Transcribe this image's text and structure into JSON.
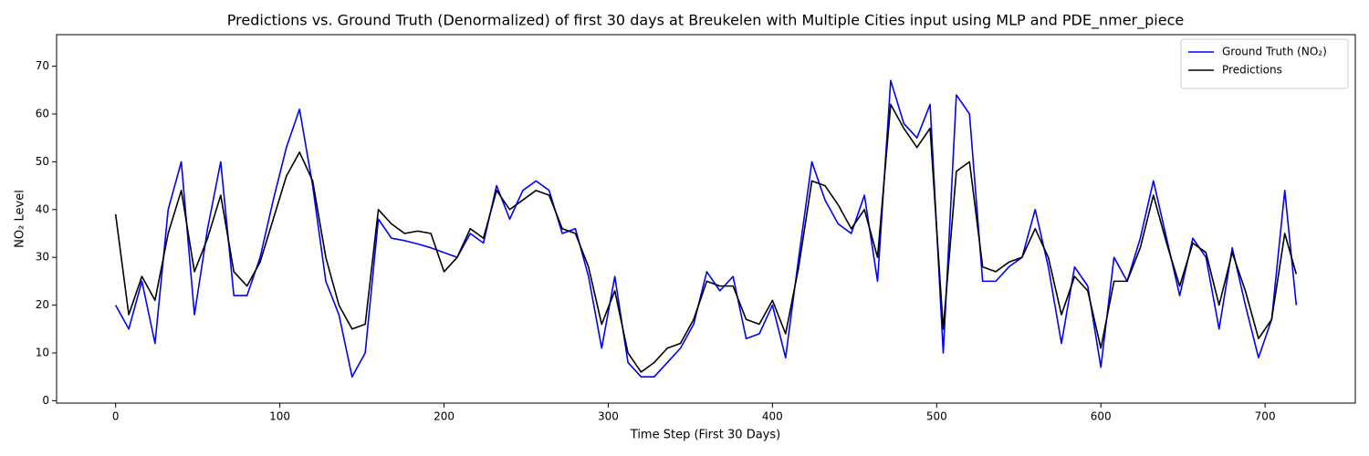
{
  "chart_data": {
    "type": "line",
    "title": "Predictions vs. Ground Truth (Denormalized) of first 30 days at Breukelen with Multiple Cities input using MLP and PDE_nmer_piece",
    "x_label": "Time Step (First 30 Days)",
    "y_label": "NO₂ Level",
    "x": [
      0,
      8,
      16,
      24,
      32,
      40,
      48,
      56,
      64,
      72,
      80,
      88,
      96,
      104,
      112,
      120,
      128,
      136,
      144,
      152,
      160,
      168,
      176,
      184,
      192,
      200,
      208,
      216,
      224,
      232,
      240,
      248,
      256,
      264,
      272,
      280,
      288,
      296,
      304,
      312,
      320,
      328,
      336,
      344,
      352,
      360,
      368,
      376,
      384,
      392,
      400,
      408,
      416,
      424,
      432,
      440,
      448,
      456,
      464,
      472,
      480,
      488,
      496,
      504,
      512,
      520,
      528,
      536,
      544,
      552,
      560,
      568,
      576,
      584,
      592,
      600,
      608,
      616,
      624,
      632,
      640,
      648,
      656,
      664,
      672,
      680,
      688,
      696,
      704,
      712,
      719
    ],
    "series": [
      {
        "name": "Ground Truth (NO₂)",
        "color": "#0000ff",
        "values": [
          20,
          15,
          25,
          12,
          40,
          50,
          18,
          36,
          50,
          22,
          22,
          30,
          42,
          53,
          61,
          45,
          25,
          18,
          5,
          10,
          38,
          34,
          33.5,
          32.8,
          32,
          31,
          30,
          35,
          33,
          45,
          38,
          44,
          46,
          44,
          35,
          36,
          26,
          11,
          26,
          8,
          5,
          5,
          8,
          11,
          16,
          27,
          23,
          26,
          13,
          14,
          20,
          9,
          30,
          50,
          42,
          37,
          35,
          43,
          25,
          67,
          58,
          55,
          62,
          10,
          64,
          60,
          25,
          25,
          28,
          30,
          40,
          28,
          12,
          28,
          24,
          7,
          30,
          25,
          34,
          46,
          34,
          22,
          34,
          30,
          15,
          32,
          20,
          9,
          17,
          44,
          20
        ]
      },
      {
        "name": "Predictions",
        "color": "#000000",
        "values": [
          39,
          18,
          26,
          21,
          35,
          44,
          27,
          34,
          43,
          27,
          24,
          29,
          38,
          47,
          52,
          46,
          30,
          20,
          15,
          16,
          40,
          37,
          35,
          35.5,
          35,
          27,
          30,
          36,
          34,
          44,
          40,
          42,
          44,
          43,
          36,
          35,
          28,
          16,
          23,
          10,
          6,
          8,
          11,
          12,
          17,
          25,
          24,
          24,
          17,
          16,
          21,
          14,
          28,
          46,
          45,
          41,
          36,
          40,
          30,
          62,
          57,
          53,
          57,
          15,
          48,
          50,
          28,
          27,
          29,
          30,
          36,
          30,
          18,
          26,
          23,
          11,
          25,
          25,
          32,
          43,
          33,
          24,
          33,
          31,
          20,
          31,
          23,
          13,
          17,
          35,
          26.5
        ]
      }
    ],
    "xlim": [
      -35.95,
      754.95
    ],
    "ylim": [
      -0.5,
      76.6
    ],
    "xticks": [
      0,
      100,
      200,
      300,
      400,
      500,
      600,
      700
    ],
    "yticks": [
      0,
      10,
      20,
      30,
      40,
      50,
      60,
      70
    ],
    "legend": "upper right",
    "grid": false
  }
}
